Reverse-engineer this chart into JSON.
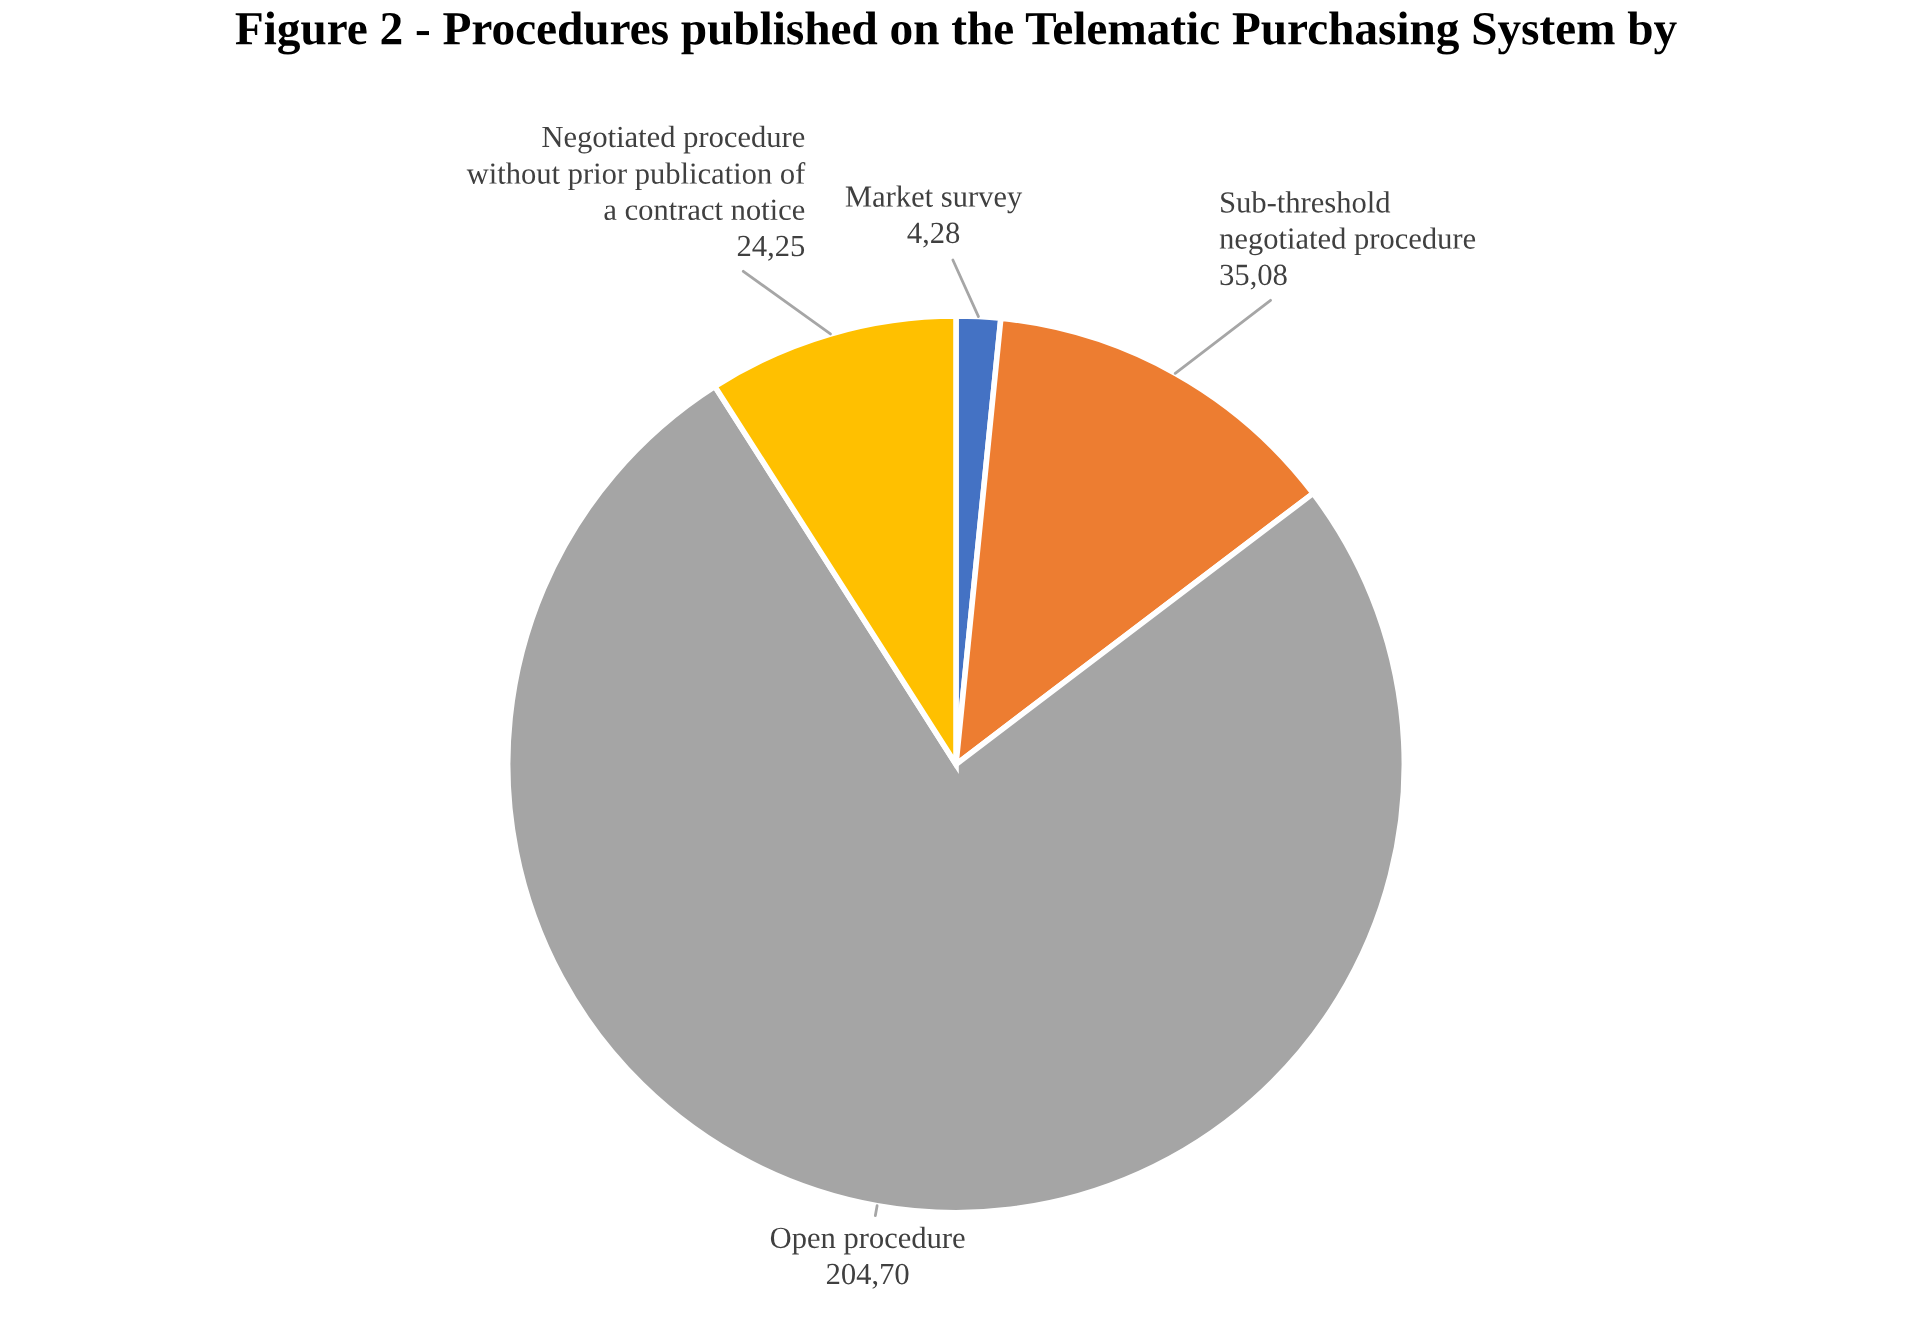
{
  "chart_data": {
    "type": "pie",
    "title": "Figure 2 - Procedures published on the Telematic Purchasing System by",
    "categories": [
      "Market survey",
      "Sub-threshold\nnegotiated procedure",
      "Open procedure",
      "Negotiated procedure\nwithout prior publication of\na contract notice"
    ],
    "values": [
      4.28,
      35.08,
      204.7,
      24.25
    ],
    "value_labels": [
      "4,28",
      "35,08",
      "204,70",
      "24,25"
    ],
    "colors": [
      "#4472c4",
      "#ed7d31",
      "#a5a5a5",
      "#ffc000"
    ],
    "legend": false
  }
}
